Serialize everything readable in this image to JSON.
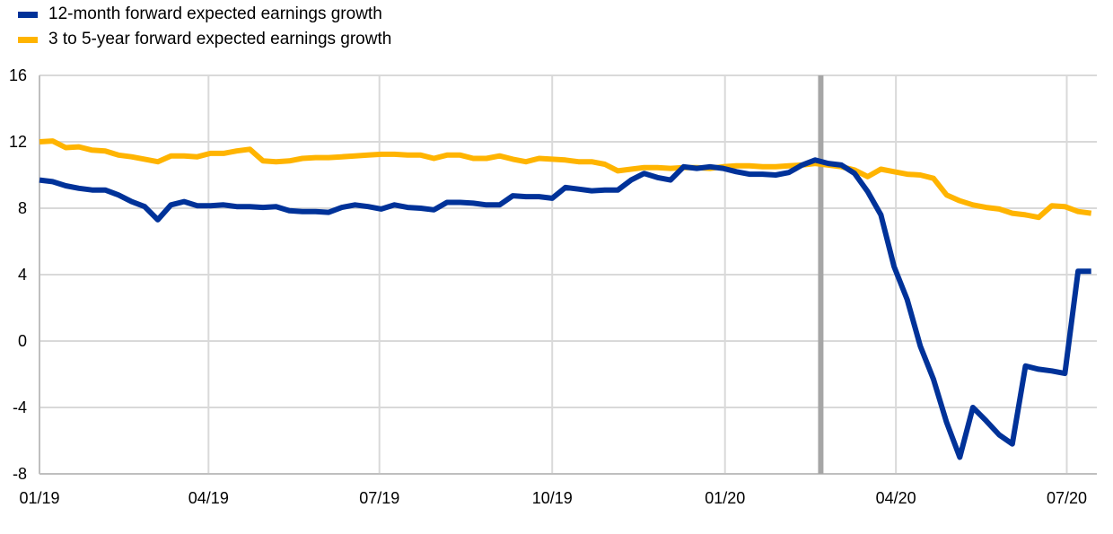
{
  "chart_data": {
    "type": "line",
    "title": "",
    "xlabel": "",
    "ylabel": "",
    "ylim": [
      -8,
      16
    ],
    "y_ticks": [
      "16",
      "12",
      "8",
      "4",
      "0",
      "-4",
      "-8"
    ],
    "x_ticks": [
      "01/19",
      "04/19",
      "07/19",
      "10/19",
      "01/20",
      "04/20",
      "07/20"
    ],
    "grid": true,
    "legend_position": "top-left",
    "marker_line_date": "2020-02-21",
    "series": [
      {
        "name": "12-month forward expected earnings growth",
        "color": "#003299",
        "points": [
          [
            "2019-01-01",
            9.7
          ],
          [
            "2019-01-08",
            9.6
          ],
          [
            "2019-01-15",
            9.35
          ],
          [
            "2019-01-22",
            9.2
          ],
          [
            "2019-01-29",
            9.1
          ],
          [
            "2019-02-05",
            9.1
          ],
          [
            "2019-02-12",
            8.8
          ],
          [
            "2019-02-19",
            8.4
          ],
          [
            "2019-02-26",
            8.1
          ],
          [
            "2019-03-05",
            7.3
          ],
          [
            "2019-03-12",
            8.2
          ],
          [
            "2019-03-19",
            8.4
          ],
          [
            "2019-03-26",
            8.15
          ],
          [
            "2019-04-02",
            8.15
          ],
          [
            "2019-04-09",
            8.2
          ],
          [
            "2019-04-16",
            8.1
          ],
          [
            "2019-04-23",
            8.1
          ],
          [
            "2019-04-30",
            8.05
          ],
          [
            "2019-05-07",
            8.1
          ],
          [
            "2019-05-14",
            7.85
          ],
          [
            "2019-05-21",
            7.8
          ],
          [
            "2019-05-28",
            7.8
          ],
          [
            "2019-06-04",
            7.75
          ],
          [
            "2019-06-11",
            8.05
          ],
          [
            "2019-06-18",
            8.2
          ],
          [
            "2019-06-25",
            8.1
          ],
          [
            "2019-07-02",
            7.95
          ],
          [
            "2019-07-09",
            8.2
          ],
          [
            "2019-07-16",
            8.05
          ],
          [
            "2019-07-23",
            8.0
          ],
          [
            "2019-07-30",
            7.9
          ],
          [
            "2019-08-06",
            8.35
          ],
          [
            "2019-08-13",
            8.35
          ],
          [
            "2019-08-20",
            8.3
          ],
          [
            "2019-08-27",
            8.2
          ],
          [
            "2019-09-03",
            8.2
          ],
          [
            "2019-09-10",
            8.75
          ],
          [
            "2019-09-17",
            8.7
          ],
          [
            "2019-09-24",
            8.7
          ],
          [
            "2019-10-01",
            8.6
          ],
          [
            "2019-10-08",
            9.25
          ],
          [
            "2019-10-15",
            9.15
          ],
          [
            "2019-10-22",
            9.05
          ],
          [
            "2019-10-29",
            9.1
          ],
          [
            "2019-11-05",
            9.1
          ],
          [
            "2019-11-12",
            9.7
          ],
          [
            "2019-11-19",
            10.1
          ],
          [
            "2019-11-26",
            9.85
          ],
          [
            "2019-12-03",
            9.7
          ],
          [
            "2019-12-10",
            10.5
          ],
          [
            "2019-12-17",
            10.4
          ],
          [
            "2019-12-24",
            10.5
          ],
          [
            "2019-12-31",
            10.4
          ],
          [
            "2020-01-07",
            10.2
          ],
          [
            "2020-01-14",
            10.05
          ],
          [
            "2020-01-21",
            10.05
          ],
          [
            "2020-01-28",
            10.0
          ],
          [
            "2020-02-04",
            10.15
          ],
          [
            "2020-02-11",
            10.6
          ],
          [
            "2020-02-18",
            10.9
          ],
          [
            "2020-02-25",
            10.7
          ],
          [
            "2020-03-03",
            10.6
          ],
          [
            "2020-03-10",
            10.1
          ],
          [
            "2020-03-17",
            9.0
          ],
          [
            "2020-03-24",
            7.6
          ],
          [
            "2020-03-31",
            4.5
          ],
          [
            "2020-04-07",
            2.5
          ],
          [
            "2020-04-14",
            -0.3
          ],
          [
            "2020-04-21",
            -2.3
          ],
          [
            "2020-04-28",
            -4.9
          ],
          [
            "2020-05-05",
            -7.0
          ],
          [
            "2020-05-12",
            -4.0
          ],
          [
            "2020-05-19",
            -4.8
          ],
          [
            "2020-05-26",
            -5.65
          ],
          [
            "2020-06-02",
            -6.2
          ],
          [
            "2020-06-09",
            -1.5
          ],
          [
            "2020-06-16",
            -1.7
          ],
          [
            "2020-06-23",
            -1.8
          ],
          [
            "2020-06-30",
            -1.95
          ],
          [
            "2020-07-07",
            4.2
          ],
          [
            "2020-07-14",
            4.2
          ]
        ]
      },
      {
        "name": "3 to 5-year forward expected earnings growth",
        "color": "#ffb400",
        "points": [
          [
            "2019-01-01",
            12.0
          ],
          [
            "2019-01-08",
            12.05
          ],
          [
            "2019-01-15",
            11.65
          ],
          [
            "2019-01-22",
            11.7
          ],
          [
            "2019-01-29",
            11.5
          ],
          [
            "2019-02-05",
            11.45
          ],
          [
            "2019-02-12",
            11.2
          ],
          [
            "2019-02-19",
            11.1
          ],
          [
            "2019-02-26",
            10.95
          ],
          [
            "2019-03-05",
            10.8
          ],
          [
            "2019-03-12",
            11.15
          ],
          [
            "2019-03-19",
            11.15
          ],
          [
            "2019-03-26",
            11.1
          ],
          [
            "2019-04-02",
            11.3
          ],
          [
            "2019-04-09",
            11.3
          ],
          [
            "2019-04-16",
            11.45
          ],
          [
            "2019-04-23",
            11.55
          ],
          [
            "2019-04-30",
            10.85
          ],
          [
            "2019-05-07",
            10.8
          ],
          [
            "2019-05-14",
            10.85
          ],
          [
            "2019-05-21",
            11.0
          ],
          [
            "2019-05-28",
            11.05
          ],
          [
            "2019-06-04",
            11.05
          ],
          [
            "2019-06-11",
            11.1
          ],
          [
            "2019-06-18",
            11.15
          ],
          [
            "2019-06-25",
            11.2
          ],
          [
            "2019-07-02",
            11.25
          ],
          [
            "2019-07-09",
            11.25
          ],
          [
            "2019-07-16",
            11.2
          ],
          [
            "2019-07-23",
            11.2
          ],
          [
            "2019-07-30",
            11.0
          ],
          [
            "2019-08-06",
            11.2
          ],
          [
            "2019-08-13",
            11.2
          ],
          [
            "2019-08-20",
            11.0
          ],
          [
            "2019-08-27",
            11.0
          ],
          [
            "2019-09-03",
            11.15
          ],
          [
            "2019-09-10",
            10.95
          ],
          [
            "2019-09-17",
            10.8
          ],
          [
            "2019-09-24",
            11.0
          ],
          [
            "2019-10-01",
            10.95
          ],
          [
            "2019-10-08",
            10.9
          ],
          [
            "2019-10-15",
            10.8
          ],
          [
            "2019-10-22",
            10.8
          ],
          [
            "2019-10-29",
            10.65
          ],
          [
            "2019-11-05",
            10.25
          ],
          [
            "2019-11-12",
            10.35
          ],
          [
            "2019-11-19",
            10.45
          ],
          [
            "2019-11-26",
            10.45
          ],
          [
            "2019-12-03",
            10.4
          ],
          [
            "2019-12-10",
            10.45
          ],
          [
            "2019-12-17",
            10.45
          ],
          [
            "2019-12-24",
            10.4
          ],
          [
            "2019-12-31",
            10.5
          ],
          [
            "2020-01-07",
            10.55
          ],
          [
            "2020-01-14",
            10.55
          ],
          [
            "2020-01-21",
            10.5
          ],
          [
            "2020-01-28",
            10.5
          ],
          [
            "2020-02-04",
            10.55
          ],
          [
            "2020-02-11",
            10.6
          ],
          [
            "2020-02-18",
            10.7
          ],
          [
            "2020-02-25",
            10.6
          ],
          [
            "2020-03-03",
            10.5
          ],
          [
            "2020-03-10",
            10.3
          ],
          [
            "2020-03-17",
            9.9
          ],
          [
            "2020-03-24",
            10.35
          ],
          [
            "2020-03-31",
            10.2
          ],
          [
            "2020-04-07",
            10.05
          ],
          [
            "2020-04-14",
            10.0
          ],
          [
            "2020-04-21",
            9.8
          ],
          [
            "2020-04-28",
            8.8
          ],
          [
            "2020-05-05",
            8.45
          ],
          [
            "2020-05-12",
            8.2
          ],
          [
            "2020-05-19",
            8.05
          ],
          [
            "2020-05-26",
            7.95
          ],
          [
            "2020-06-02",
            7.7
          ],
          [
            "2020-06-09",
            7.6
          ],
          [
            "2020-06-16",
            7.45
          ],
          [
            "2020-06-23",
            8.15
          ],
          [
            "2020-06-30",
            8.1
          ],
          [
            "2020-07-07",
            7.8
          ],
          [
            "2020-07-14",
            7.7
          ]
        ]
      }
    ]
  }
}
